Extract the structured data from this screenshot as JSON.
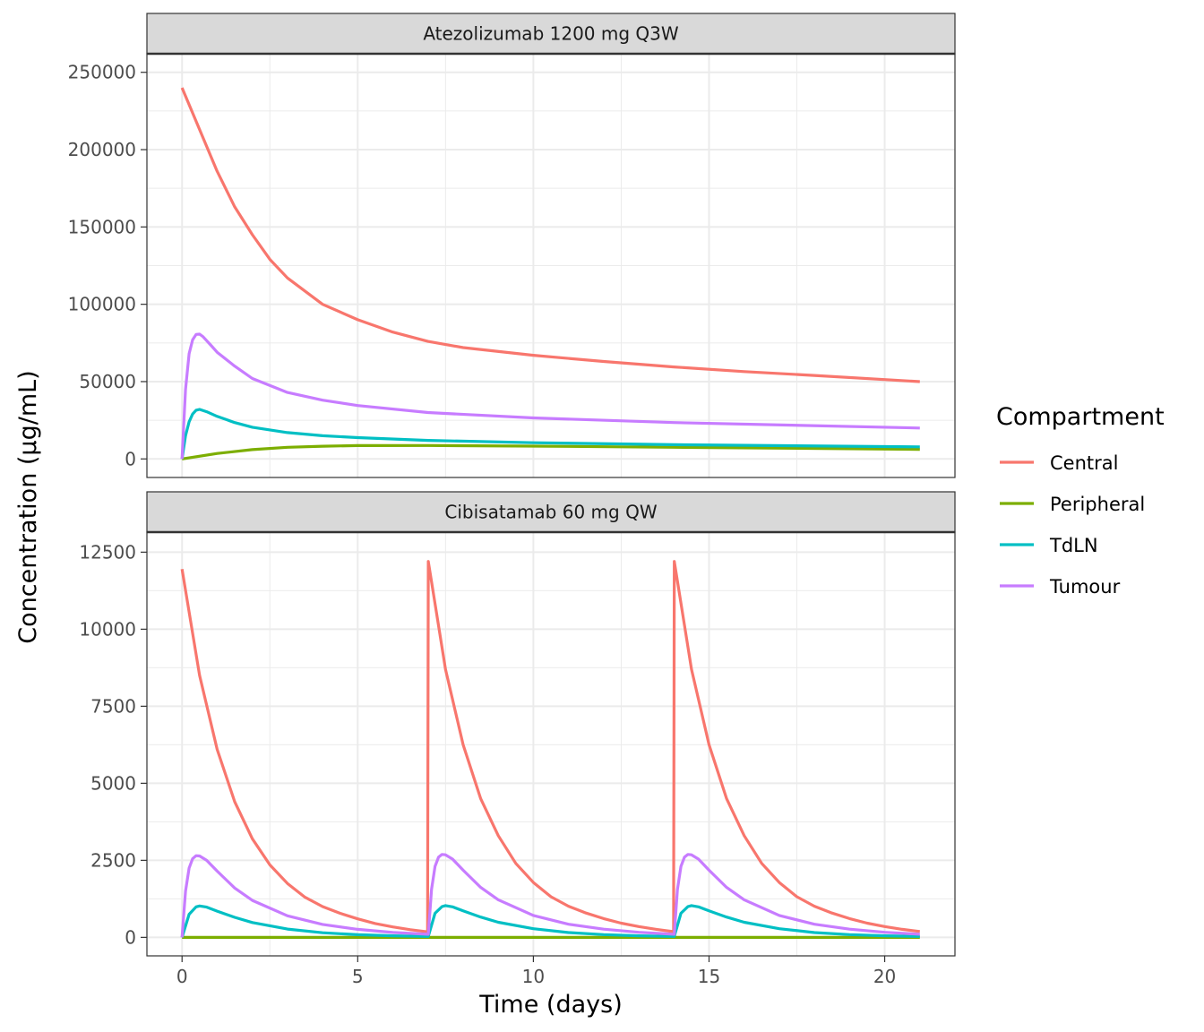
{
  "chart_data": {
    "type": "line",
    "xlabel": "Time (days)",
    "ylabel": "Concentration (µg/mL)",
    "x_ticks": [
      0,
      5,
      10,
      15,
      20
    ],
    "xlim": [
      -1,
      22
    ],
    "grid": true,
    "legend": {
      "title": "Compartment",
      "position": "right",
      "entries": [
        {
          "name": "Central",
          "color": "#F8766D"
        },
        {
          "name": "Peripheral",
          "color": "#7CAE00"
        },
        {
          "name": "TdLN",
          "color": "#00BFC4"
        },
        {
          "name": "Tumour",
          "color": "#C77CFF"
        }
      ]
    },
    "panels": [
      {
        "title": "Atezolizumab 1200 mg Q3W",
        "ylim": [
          -12000,
          262000
        ],
        "y_ticks": [
          0,
          50000,
          100000,
          150000,
          200000,
          250000
        ],
        "y_tick_labels": [
          "0",
          "50000",
          "100000",
          "150000",
          "200000",
          "250000"
        ],
        "series": [
          {
            "name": "Central",
            "x": [
              0,
              0.5,
              1,
              1.5,
              2,
              2.5,
              3,
              4,
              5,
              6,
              7,
              8,
              10,
              12,
              14,
              16,
              18,
              21
            ],
            "values": [
              240000,
              213000,
              186000,
              163000,
              145000,
              129000,
              117000,
              100000,
              90000,
              82000,
              76000,
              72000,
              67000,
              63000,
              59500,
              56500,
              54000,
              50000
            ]
          },
          {
            "name": "Peripheral",
            "x": [
              0,
              1,
              2,
              3,
              4,
              5,
              7,
              10,
              14,
              21
            ],
            "values": [
              0,
              3500,
              6000,
              7500,
              8200,
              8600,
              8700,
              8300,
              7500,
              6200
            ]
          },
          {
            "name": "TdLN",
            "x": [
              0,
              0.1,
              0.2,
              0.3,
              0.4,
              0.5,
              0.7,
              1,
              1.5,
              2,
              3,
              4,
              5,
              7,
              10,
              14,
              21
            ],
            "values": [
              0,
              15000,
              24000,
              29000,
              31500,
              32000,
              30500,
              27500,
              23500,
              20500,
              17000,
              15000,
              13800,
              12000,
              10500,
              9200,
              7800
            ]
          },
          {
            "name": "Tumour",
            "x": [
              0,
              0.1,
              0.2,
              0.3,
              0.4,
              0.5,
              0.6,
              0.8,
              1,
              1.5,
              2,
              3,
              4,
              5,
              7,
              10,
              14,
              21
            ],
            "values": [
              0,
              45000,
              68000,
              77000,
              80500,
              80700,
              79000,
              74000,
              69000,
              60000,
              52000,
              43000,
              38000,
              34500,
              30000,
              26500,
              23500,
              20000
            ]
          }
        ]
      },
      {
        "title": "Cibisatamab 60 mg QW",
        "ylim": [
          -600,
          13150
        ],
        "y_ticks": [
          0,
          2500,
          5000,
          7500,
          10000,
          12500
        ],
        "y_tick_labels": [
          "0",
          "2500",
          "5000",
          "7500",
          "10000",
          "12500"
        ],
        "series": [
          {
            "name": "Central",
            "x": [
              0,
              0.5,
              1,
              1.5,
              2,
              2.5,
              3,
              3.5,
              4,
              4.5,
              5,
              5.5,
              6,
              6.5,
              6.99,
              7.01,
              7.5,
              8,
              8.5,
              9,
              9.5,
              10,
              10.5,
              11,
              11.5,
              12,
              12.5,
              13,
              13.5,
              13.99,
              14.01,
              14.5,
              15,
              15.5,
              16,
              16.5,
              17,
              17.5,
              18,
              18.5,
              19,
              19.5,
              20,
              20.5,
              21
            ],
            "values": [
              11950,
              8500,
              6100,
              4400,
              3200,
              2350,
              1750,
              1300,
              1000,
              780,
              600,
              450,
              340,
              250,
              180,
              12200,
              8700,
              6250,
              4500,
              3300,
              2400,
              1780,
              1320,
              1010,
              790,
              610,
              460,
              350,
              260,
              185,
              12200,
              8700,
              6250,
              4500,
              3300,
              2400,
              1780,
              1320,
              1010,
              790,
              610,
              460,
              350,
              260,
              190
            ]
          },
          {
            "name": "Peripheral",
            "x": [
              0,
              21
            ],
            "values": [
              0,
              0
            ]
          },
          {
            "name": "TdLN",
            "x": [
              0,
              0.2,
              0.4,
              0.5,
              0.7,
              1,
              1.5,
              2,
              3,
              4,
              5,
              6,
              6.99,
              7.01,
              7.2,
              7.4,
              7.5,
              7.7,
              8,
              8.5,
              9,
              10,
              11,
              12,
              13,
              13.99,
              14.01,
              14.2,
              14.4,
              14.5,
              14.7,
              15,
              15.5,
              16,
              17,
              18,
              19,
              20,
              21
            ],
            "values": [
              0,
              750,
              990,
              1020,
              980,
              850,
              650,
              480,
              270,
              150,
              85,
              50,
              30,
              30,
              780,
              1000,
              1030,
              990,
              860,
              660,
              490,
              280,
              155,
              88,
              52,
              30,
              30,
              780,
              1000,
              1030,
              990,
              860,
              660,
              490,
              280,
              155,
              88,
              52,
              30
            ]
          },
          {
            "name": "Tumour",
            "x": [
              0,
              0.1,
              0.2,
              0.3,
              0.4,
              0.5,
              0.7,
              1,
              1.5,
              2,
              3,
              4,
              5,
              6,
              6.99,
              7.01,
              7.1,
              7.2,
              7.3,
              7.4,
              7.5,
              7.7,
              8,
              8.5,
              9,
              10,
              11,
              12,
              13,
              13.99,
              14.01,
              14.1,
              14.2,
              14.3,
              14.4,
              14.5,
              14.7,
              15,
              15.5,
              16,
              17,
              18,
              19,
              20,
              21
            ],
            "values": [
              0,
              1500,
              2250,
              2550,
              2650,
              2640,
              2500,
              2150,
              1600,
              1200,
              700,
              420,
              260,
              160,
              100,
              100,
              1550,
              2300,
              2600,
              2690,
              2680,
              2540,
              2180,
              1620,
              1220,
              710,
              425,
              265,
              165,
              100,
              100,
              1550,
              2300,
              2600,
              2690,
              2680,
              2540,
              2180,
              1620,
              1220,
              710,
              425,
              265,
              165,
              100
            ]
          }
        ]
      }
    ]
  }
}
